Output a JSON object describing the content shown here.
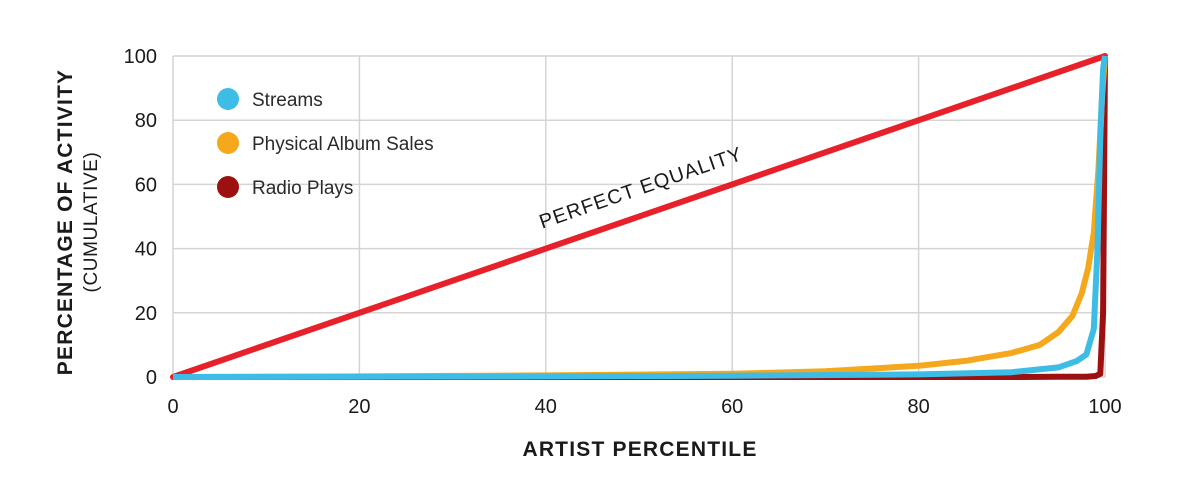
{
  "chart_data": {
    "type": "line",
    "xlabel": "ARTIST PERCENTILE",
    "ylabel": "PERCENTAGE OF ACTIVITY",
    "ylabel_sub": "(CUMULATIVE)",
    "xlim": [
      0,
      100
    ],
    "ylim": [
      0,
      100
    ],
    "x_ticks": [
      "0",
      "20",
      "40",
      "60",
      "80",
      "100"
    ],
    "y_ticks": [
      "0",
      "20",
      "40",
      "60",
      "80",
      "100"
    ],
    "grid": true,
    "legend_position": "top-left",
    "annotation": "PERFECT EQUALITY",
    "reference_line": {
      "label": "PERFECT EQUALITY",
      "color": "#e8202a",
      "x": [
        0,
        100
      ],
      "y": [
        0,
        100
      ]
    },
    "series": [
      {
        "name": "Streams",
        "color": "#3dbde6",
        "x": [
          0,
          20,
          40,
          60,
          80,
          90,
          95,
          97,
          98,
          98.8,
          99.2,
          99.5,
          99.8,
          100
        ],
        "y": [
          0,
          0.1,
          0.2,
          0.4,
          0.8,
          1.5,
          3,
          5,
          7,
          15,
          40,
          75,
          96,
          100
        ]
      },
      {
        "name": "Physical Album Sales",
        "color": "#f5a81c",
        "x": [
          0,
          20,
          40,
          60,
          70,
          80,
          85,
          90,
          93,
          95,
          96.5,
          97.5,
          98.2,
          98.8,
          99.3,
          99.7,
          100
        ],
        "y": [
          0,
          0.2,
          0.5,
          1,
          1.8,
          3.5,
          5,
          7.5,
          10,
          14,
          19,
          26,
          34,
          45,
          65,
          88,
          100
        ]
      },
      {
        "name": "Radio Plays",
        "color": "#9c1010",
        "x": [
          0,
          60,
          80,
          90,
          95,
          98,
          99,
          99.5,
          99.8,
          100
        ],
        "y": [
          0,
          0,
          0,
          0,
          0.05,
          0.1,
          0.3,
          1,
          20,
          100
        ]
      }
    ]
  }
}
